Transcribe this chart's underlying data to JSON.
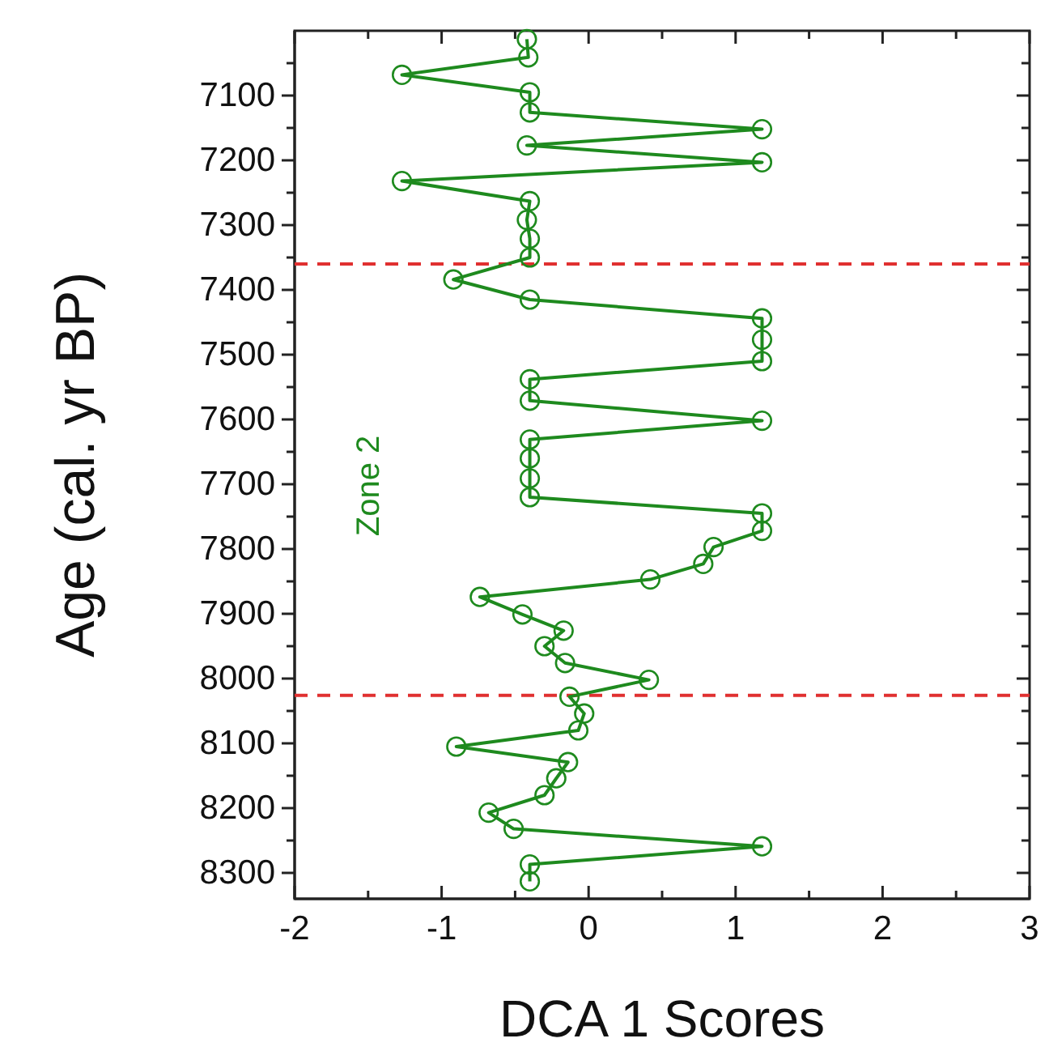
{
  "chart_data": {
    "type": "line",
    "xlabel": "DCA 1 Scores",
    "ylabel": "Age (cal. yr BP)",
    "annotations": [
      "Zone 2"
    ],
    "xlim": [
      -2,
      3
    ],
    "xticks": [
      -2,
      {
        "value": -1.5,
        "label": null
      },
      -1,
      {
        "value": -0.5,
        "label": null
      },
      0,
      {
        "value": 0.5,
        "label": null
      },
      1,
      {
        "value": 1.5,
        "label": null
      },
      2,
      {
        "value": 2.5,
        "label": null
      },
      3
    ],
    "ylim": [
      8340,
      7000
    ],
    "yticks": [
      {
        "value": 7050,
        "label": null
      },
      7100,
      {
        "value": 7150,
        "label": null
      },
      7200,
      {
        "value": 7250,
        "label": null
      },
      7300,
      {
        "value": 7350,
        "label": null
      },
      7400,
      {
        "value": 7450,
        "label": null
      },
      7500,
      {
        "value": 7550,
        "label": null
      },
      7600,
      {
        "value": 7650,
        "label": null
      },
      7700,
      {
        "value": 7750,
        "label": null
      },
      7800,
      {
        "value": 7850,
        "label": null
      },
      7900,
      {
        "value": 7950,
        "label": null
      },
      8000,
      {
        "value": 8050,
        "label": null
      },
      8100,
      {
        "value": 8150,
        "label": null
      },
      8200,
      {
        "value": 8250,
        "label": null
      },
      8300
    ],
    "marker": "circle",
    "line_style": "solid",
    "ref_lines": [
      {
        "axis": "y",
        "value": 7360,
        "label": null,
        "color": "#e03030",
        "line_style": "dashed"
      },
      {
        "axis": "y",
        "value": 8026,
        "label": null,
        "color": "#e03030",
        "line_style": "dashed"
      }
    ],
    "series": [
      {
        "color": "#1e8a1e",
        "x": [
          -0.42,
          -0.41,
          -1.27,
          -0.4,
          -0.4,
          1.18,
          -0.42,
          1.18,
          -1.27,
          -0.4,
          -0.42,
          -0.4,
          -0.4,
          -0.92,
          -0.4,
          1.18,
          1.18,
          1.18,
          -0.4,
          -0.4,
          1.18,
          -0.4,
          -0.4,
          -0.4,
          -0.4,
          1.18,
          1.18,
          0.85,
          0.78,
          0.42,
          -0.74,
          -0.45,
          -0.17,
          -0.3,
          -0.16,
          0.41,
          -0.13,
          -0.03,
          -0.07,
          -0.9,
          -0.14,
          -0.22,
          -0.3,
          -0.68,
          -0.51,
          1.18,
          -0.4,
          -0.4
        ],
        "values": [
          7013,
          7041,
          7068,
          7095,
          7126,
          7152,
          7177,
          7203,
          7232,
          7263,
          7292,
          7321,
          7350,
          7384,
          7415,
          7444,
          7477,
          7510,
          7538,
          7571,
          7602,
          7631,
          7660,
          7691,
          7720,
          7745,
          7772,
          7797,
          7823,
          7847,
          7874,
          7901,
          7926,
          7950,
          7976,
          8002,
          8028,
          8054,
          8080,
          8105,
          8129,
          8154,
          8180,
          8207,
          8232,
          8259,
          8287,
          8313
        ]
      }
    ]
  }
}
